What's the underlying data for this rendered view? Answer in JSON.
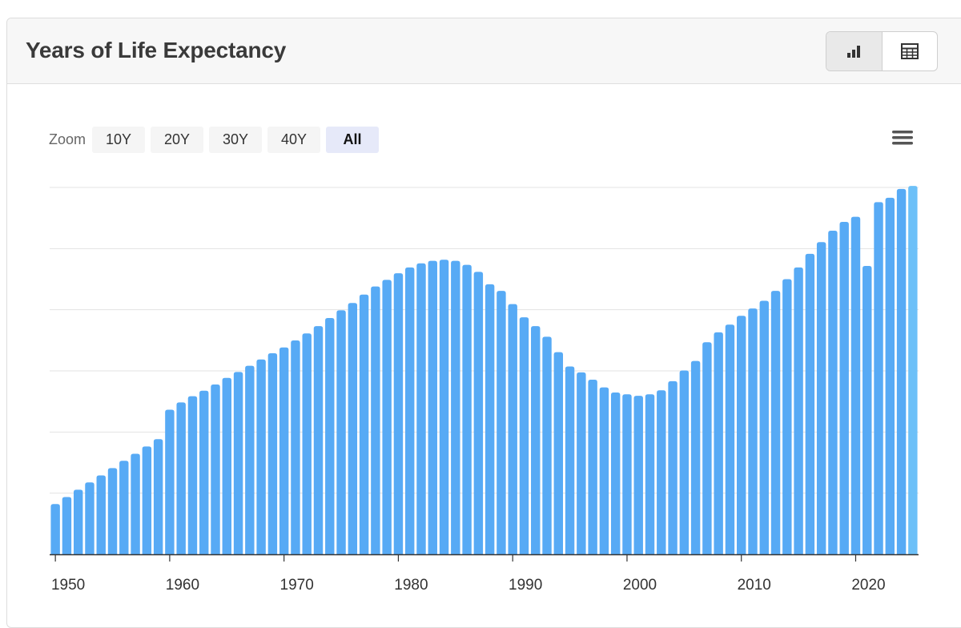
{
  "header": {
    "title": "Years of Life Expectancy"
  },
  "view_toggle": [
    {
      "name": "bar-chart-icon",
      "active": true
    },
    {
      "name": "table-icon",
      "active": false
    }
  ],
  "zoom": {
    "label": "Zoom",
    "options": [
      "10Y",
      "20Y",
      "30Y",
      "40Y",
      "All"
    ],
    "selected": "All"
  },
  "menu": {
    "icon": "hamburger-menu-icon"
  },
  "colors": {
    "bar": "#57aaf5",
    "bar_last": "#6cc0f8",
    "grid": "#e3e3e3",
    "axis": "#333333"
  },
  "chart_data": {
    "type": "bar",
    "title": "",
    "xlabel": "",
    "ylabel": "",
    "grid": true,
    "legend": "none",
    "x_tick_labels": [
      "1950",
      "1960",
      "1970",
      "1980",
      "1990",
      "2000",
      "2010",
      "2020"
    ],
    "ylim": [
      0,
      100
    ],
    "x": [
      1950,
      1951,
      1952,
      1953,
      1954,
      1955,
      1956,
      1957,
      1958,
      1959,
      1960,
      1961,
      1962,
      1963,
      1964,
      1965,
      1966,
      1967,
      1968,
      1969,
      1970,
      1971,
      1972,
      1973,
      1974,
      1975,
      1976,
      1977,
      1978,
      1979,
      1980,
      1981,
      1982,
      1983,
      1984,
      1985,
      1986,
      1987,
      1988,
      1989,
      1990,
      1991,
      1992,
      1993,
      1994,
      1995,
      1996,
      1997,
      1998,
      1999,
      2000,
      2001,
      2002,
      2003,
      2004,
      2005,
      2006,
      2007,
      2008,
      2009,
      2010,
      2011,
      2012,
      2013,
      2014,
      2015,
      2016,
      2017,
      2018,
      2019,
      2020,
      2021,
      2022,
      2023,
      2024,
      2025
    ],
    "values": [
      13.7,
      15.6,
      17.6,
      19.6,
      21.5,
      23.5,
      25.5,
      27.4,
      29.4,
      31.4,
      39.4,
      41.4,
      43.1,
      44.6,
      46.3,
      48.1,
      49.7,
      51.4,
      53.1,
      54.8,
      56.4,
      58.3,
      60.2,
      62.2,
      64.4,
      66.5,
      68.5,
      70.8,
      73.0,
      74.8,
      76.6,
      78.2,
      79.3,
      80.0,
      80.3,
      80.0,
      78.9,
      77.0,
      73.6,
      71.8,
      68.2,
      64.6,
      62.2,
      59.3,
      55.1,
      51.2,
      49.6,
      47.6,
      45.5,
      44.1,
      43.6,
      43.2,
      43.6,
      44.7,
      47.2,
      50.1,
      52.7,
      57.8,
      60.5,
      62.6,
      65.0,
      67.0,
      69.1,
      71.8,
      75.0,
      78.2,
      81.9,
      85.1,
      88.2,
      90.6,
      92.0,
      78.6,
      96.0,
      97.2,
      99.6,
      100.4
    ]
  }
}
